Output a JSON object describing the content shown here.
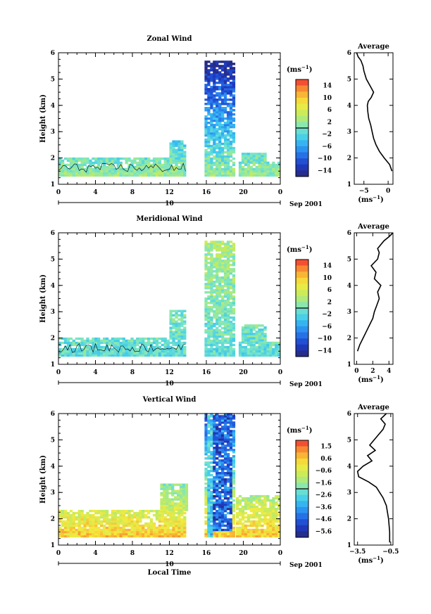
{
  "chart_data": [
    {
      "type": "heatmap",
      "title": "Zonal Wind",
      "ylabel": "Height (km)",
      "xlabel": "",
      "xlim": [
        0,
        24
      ],
      "ylim": [
        1,
        6
      ],
      "x_ticks": [
        "0",
        "4",
        "8",
        "12",
        "16",
        "20",
        "0"
      ],
      "y_ticks": [
        "1",
        "2",
        "3",
        "4",
        "5",
        "6"
      ],
      "date_axis": {
        "day": "10",
        "label": "Sep 2001"
      },
      "colorbar": {
        "unit": "(ms",
        "unit_sup": "−1",
        "unit_close": ")",
        "ticks": [
          "14",
          "10",
          "6",
          "2",
          "−2",
          "−6",
          "−10",
          "−14"
        ],
        "range": [
          -16,
          16
        ]
      },
      "data_mask": [
        {
          "x0": 0,
          "x1": 13.8,
          "y0": 1.3,
          "y1": 1.95
        },
        {
          "x0": 12,
          "x1": 13.8,
          "y0": 1.95,
          "y1": 2.6
        },
        {
          "x0": 15.8,
          "x1": 19.0,
          "y0": 1.3,
          "y1": 5.7
        },
        {
          "x0": 19.5,
          "x1": 24,
          "y0": 1.3,
          "y1": 1.8
        },
        {
          "x0": 19.8,
          "x1": 22.5,
          "y0": 1.8,
          "y1": 2.2
        }
      ],
      "value_trend": [
        0.6,
        0.0
      ],
      "average_profile": {
        "title": "Average",
        "xlabel": "(ms",
        "xlabel_sup": "−1",
        "xlabel_close": ")",
        "xlim": [
          -7,
          1
        ],
        "x_ticks": [
          "−5",
          "0"
        ],
        "x_tick_values": [
          -5,
          0
        ],
        "y_ticks": [
          "1",
          "2",
          "3",
          "4",
          "5",
          "6"
        ],
        "x": [
          0.8,
          0.3,
          -0.8,
          -1.8,
          -2.5,
          -3.0,
          -3.3,
          -3.6,
          -4.0,
          -4.2,
          -4.3,
          -4.1,
          -3.5,
          -3.0,
          -3.6,
          -4.5,
          -5.0,
          -5.2,
          -5.6,
          -6.2,
          -6.5
        ],
        "y": [
          1.5,
          1.75,
          2.0,
          2.25,
          2.5,
          2.75,
          3.0,
          3.25,
          3.5,
          3.75,
          4.0,
          4.15,
          4.3,
          4.5,
          4.7,
          5.0,
          5.3,
          5.5,
          5.7,
          5.85,
          6.0
        ]
      }
    },
    {
      "type": "heatmap",
      "title": "Meridional Wind",
      "ylabel": "Height (km)",
      "xlabel": "",
      "xlim": [
        0,
        24
      ],
      "ylim": [
        1,
        6
      ],
      "x_ticks": [
        "0",
        "4",
        "8",
        "12",
        "16",
        "20",
        "0"
      ],
      "y_ticks": [
        "1",
        "2",
        "3",
        "4",
        "5",
        "6"
      ],
      "date_axis": {
        "day": "10",
        "label": "Sep 2001"
      },
      "colorbar": {
        "unit": "(ms",
        "unit_sup": "−1",
        "unit_close": ")",
        "ticks": [
          "14",
          "10",
          "6",
          "2",
          "−2",
          "−6",
          "−10",
          "−14"
        ],
        "range": [
          -16,
          16
        ]
      },
      "data_mask": [
        {
          "x0": 0,
          "x1": 13.8,
          "y0": 1.3,
          "y1": 1.95
        },
        {
          "x0": 12,
          "x1": 13.8,
          "y0": 1.95,
          "y1": 3.0
        },
        {
          "x0": 15.8,
          "x1": 19.0,
          "y0": 1.3,
          "y1": 5.7
        },
        {
          "x0": 19.5,
          "x1": 24,
          "y0": 1.3,
          "y1": 1.8
        },
        {
          "x0": 19.8,
          "x1": 22.5,
          "y0": 1.8,
          "y1": 2.5
        }
      ],
      "value_trend": [
        0.45,
        0.6
      ],
      "average_profile": {
        "title": "Average",
        "xlabel": "(ms",
        "xlabel_sup": "−1",
        "xlabel_close": ")",
        "xlim": [
          -0.3,
          4.5
        ],
        "x_ticks": [
          "0",
          "2",
          "4"
        ],
        "x_tick_values": [
          0,
          2,
          4
        ],
        "y_ticks": [
          "1",
          "2",
          "3",
          "4",
          "5",
          "6"
        ],
        "x": [
          0.1,
          0.4,
          0.8,
          1.2,
          1.6,
          2.0,
          2.2,
          2.5,
          2.8,
          2.6,
          3.0,
          2.2,
          2.4,
          1.8,
          2.6,
          2.8,
          2.6,
          3.0,
          3.4,
          4.0,
          4.5
        ],
        "y": [
          1.5,
          1.75,
          2.0,
          2.25,
          2.5,
          2.75,
          3.0,
          3.25,
          3.5,
          3.75,
          4.0,
          4.25,
          4.5,
          4.75,
          5.0,
          5.25,
          5.4,
          5.55,
          5.7,
          5.85,
          6.0
        ]
      }
    },
    {
      "type": "heatmap",
      "title": "Vertical Wind",
      "ylabel": "Height (km)",
      "xlabel": "Local Time",
      "xlim": [
        0,
        24
      ],
      "ylim": [
        1,
        6
      ],
      "x_ticks": [
        "0",
        "4",
        "8",
        "12",
        "16",
        "20",
        "0"
      ],
      "y_ticks": [
        "1",
        "2",
        "3",
        "4",
        "5",
        "6"
      ],
      "date_axis": {
        "day": "10",
        "label": "Sep 2001"
      },
      "colorbar": {
        "unit": "(ms",
        "unit_sup": "−1",
        "unit_close": ")",
        "ticks": [
          "1.5",
          "0.6",
          "−0.6",
          "−1.6",
          "−2.6",
          "−3.6",
          "−4.6",
          "−5.6"
        ],
        "range": [
          -6,
          2
        ]
      },
      "data_mask": [
        {
          "x0": 0,
          "x1": 13.8,
          "y0": 1.3,
          "y1": 2.3
        },
        {
          "x0": 11,
          "x1": 13.8,
          "y0": 2.3,
          "y1": 3.3
        },
        {
          "x0": 15.8,
          "x1": 19.0,
          "y0": 1.3,
          "y1": 6.0
        },
        {
          "x0": 19.2,
          "x1": 23.8,
          "y0": 1.3,
          "y1": 2.9
        }
      ],
      "value_trend": [
        0.85,
        0.15
      ],
      "average_profile": {
        "title": "Average",
        "xlabel": "(ms",
        "xlabel_sup": "−1",
        "xlabel_close": ")",
        "xlim": [
          -3.8,
          -0.3
        ],
        "x_ticks": [
          "−3.5",
          "−0.5"
        ],
        "x_tick_values": [
          -3.5,
          -0.5
        ],
        "y_ticks": [
          "1",
          "2",
          "3",
          "4",
          "5",
          "6"
        ],
        "x": [
          -0.6,
          -0.6,
          -0.7,
          -0.9,
          -1.2,
          -1.5,
          -1.8,
          -2.5,
          -3.4,
          -3.5,
          -3.0,
          -2.2,
          -2.6,
          -1.9,
          -2.4,
          -2.0,
          -1.6,
          -1.2,
          -1.0,
          -1.4,
          -0.9
        ],
        "y": [
          1.1,
          1.5,
          2.0,
          2.5,
          2.8,
          3.0,
          3.2,
          3.4,
          3.6,
          3.8,
          4.0,
          4.2,
          4.4,
          4.6,
          4.8,
          5.0,
          5.2,
          5.4,
          5.6,
          5.8,
          6.0
        ]
      }
    }
  ]
}
